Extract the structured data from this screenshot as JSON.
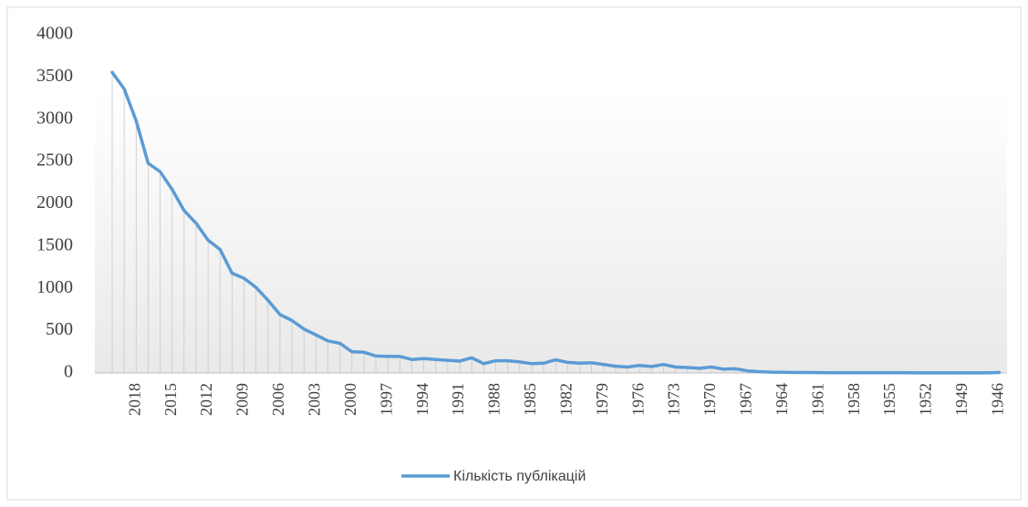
{
  "chart_data": {
    "type": "line",
    "categories": [
      null,
      null,
      2018,
      null,
      null,
      2015,
      null,
      null,
      2012,
      null,
      null,
      2009,
      null,
      null,
      2006,
      null,
      null,
      2003,
      null,
      null,
      2000,
      null,
      null,
      1997,
      null,
      null,
      1994,
      null,
      null,
      1991,
      null,
      null,
      1988,
      null,
      null,
      1985,
      null,
      null,
      1982,
      null,
      null,
      1979,
      null,
      null,
      1976,
      null,
      null,
      1973,
      null,
      null,
      1970,
      null,
      null,
      1967,
      null,
      null,
      1964,
      null,
      null,
      1961,
      null,
      null,
      1958,
      null,
      null,
      1955,
      null,
      null,
      1952,
      null,
      null,
      1949,
      null,
      null,
      1946
    ],
    "series": [
      {
        "name": "Кількість публікацій",
        "color": "#5b9bd5",
        "values": [
          3555,
          3360,
          2980,
          2480,
          2380,
          2170,
          1920,
          1770,
          1570,
          1460,
          1180,
          1120,
          1010,
          860,
          690,
          620,
          520,
          450,
          380,
          350,
          250,
          245,
          200,
          195,
          195,
          160,
          170,
          160,
          150,
          140,
          180,
          110,
          145,
          145,
          130,
          110,
          115,
          155,
          125,
          115,
          120,
          100,
          80,
          70,
          90,
          75,
          100,
          70,
          65,
          55,
          70,
          45,
          50,
          25,
          15,
          10,
          8,
          5,
          5,
          4,
          3,
          3,
          3,
          2,
          2,
          2,
          2,
          1,
          1,
          1,
          1,
          1,
          1,
          1,
          5
        ]
      }
    ],
    "ylim": [
      0,
      4000
    ],
    "yticks": [
      0,
      500,
      1000,
      1500,
      2000,
      2500,
      3000,
      3500,
      4000
    ],
    "drop_lines": true,
    "legend": "bottom"
  }
}
